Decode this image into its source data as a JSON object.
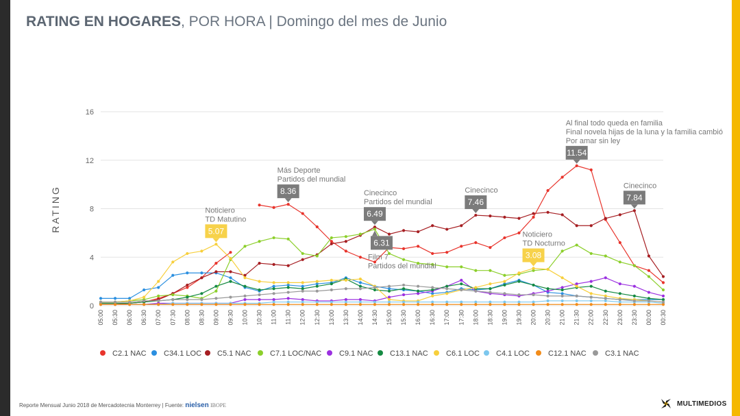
{
  "header": {
    "title_bold": "RATING EN HOGARES",
    "title_rest": ", POR HORA | Domingo del mes de Junio"
  },
  "footer": {
    "source_prefix": "Reporte Mensual Junio 2018 de Mercadotecnia Monterrey | Fuente:",
    "nielsen": "nielsen",
    "ibope": "IBOPE",
    "brand": "MULTIMEDIOS"
  },
  "chart_data": {
    "type": "line",
    "ylabel": "RATING",
    "ylim": [
      0,
      16
    ],
    "yticks": [
      0,
      4,
      8,
      12,
      16
    ],
    "grid": true,
    "legend_position": "bottom",
    "categories": [
      "05:00",
      "05:30",
      "06:00",
      "06:30",
      "07:00",
      "07:30",
      "08:00",
      "08:30",
      "09:00",
      "09:30",
      "10:00",
      "10:30",
      "11:00",
      "11:30",
      "12:00",
      "12:30",
      "13:00",
      "13:30",
      "14:00",
      "14:30",
      "15:00",
      "15:30",
      "16:00",
      "16:30",
      "17:00",
      "17:30",
      "18:00",
      "18:30",
      "19:00",
      "19:30",
      "20:00",
      "20:30",
      "21:00",
      "21:30",
      "22:00",
      "22:30",
      "23:00",
      "23:30",
      "00:00",
      "00:30"
    ],
    "series": [
      {
        "name": "C2.1 NAC",
        "color": "#e8342c",
        "values": [
          0.1,
          0.1,
          0.2,
          0.3,
          0.6,
          1.0,
          1.5,
          2.3,
          3.5,
          4.4,
          null,
          8.3,
          8.1,
          8.36,
          7.6,
          6.5,
          5.3,
          4.5,
          4.0,
          3.6,
          4.8,
          4.7,
          4.9,
          4.3,
          4.4,
          4.9,
          5.2,
          4.8,
          5.6,
          6.0,
          7.3,
          9.5,
          10.6,
          11.54,
          11.2,
          7.1,
          5.2,
          3.3,
          2.9,
          1.9
        ]
      },
      {
        "name": "C34.1 LOC",
        "color": "#2a8fe0",
        "values": [
          0.6,
          0.6,
          0.6,
          1.3,
          1.5,
          2.5,
          2.7,
          2.7,
          2.7,
          2.3,
          1.5,
          1.2,
          1.6,
          1.7,
          1.6,
          1.8,
          1.9,
          2.3,
          1.9,
          1.6,
          1.4,
          1.3,
          1.2,
          1.0,
          1.1,
          1.4,
          1.3,
          1.4,
          1.8,
          2.1,
          1.7,
          1.1,
          1.0,
          0.8,
          0.7,
          0.6,
          0.5,
          0.5,
          0.5,
          0.5
        ]
      },
      {
        "name": "C5.1 NAC",
        "color": "#a61e22",
        "values": [
          0.2,
          0.2,
          0.2,
          0.3,
          0.5,
          1.0,
          1.7,
          2.3,
          2.8,
          2.8,
          2.5,
          3.5,
          3.4,
          3.3,
          3.8,
          4.2,
          5.1,
          5.3,
          5.8,
          6.49,
          5.9,
          6.2,
          6.1,
          6.6,
          6.3,
          6.6,
          7.46,
          7.4,
          7.3,
          7.2,
          7.6,
          7.7,
          7.5,
          6.6,
          6.6,
          7.2,
          7.5,
          7.84,
          4.1,
          2.4
        ]
      },
      {
        "name": "C7.1 LOC/NAC",
        "color": "#8ccf2b",
        "values": [
          0.3,
          0.3,
          0.4,
          0.5,
          0.8,
          0.9,
          0.8,
          0.6,
          1.2,
          3.8,
          4.9,
          5.3,
          5.6,
          5.5,
          4.3,
          4.1,
          5.6,
          5.7,
          5.9,
          6.31,
          4.3,
          3.8,
          3.5,
          3.4,
          3.2,
          3.2,
          2.9,
          2.9,
          2.5,
          2.6,
          2.9,
          3.0,
          4.5,
          5.0,
          4.3,
          4.1,
          3.6,
          3.3,
          2.4,
          1.3
        ]
      },
      {
        "name": "C9.1 NAC",
        "color": "#9b30e0",
        "values": [
          0.1,
          0.1,
          0.1,
          0.1,
          0.2,
          0.2,
          0.2,
          0.2,
          0.2,
          0.2,
          0.5,
          0.5,
          0.5,
          0.6,
          0.5,
          0.4,
          0.4,
          0.5,
          0.5,
          0.4,
          0.7,
          0.9,
          1.0,
          1.2,
          1.6,
          2.1,
          1.2,
          1.0,
          0.9,
          0.8,
          1.0,
          1.2,
          1.5,
          1.8,
          2.0,
          2.3,
          1.8,
          1.6,
          1.1,
          0.8
        ]
      },
      {
        "name": "C13.1 NAC",
        "color": "#158a42",
        "values": [
          0.2,
          0.2,
          0.2,
          0.3,
          0.4,
          0.5,
          0.7,
          1.0,
          1.6,
          2.0,
          1.6,
          1.3,
          1.4,
          1.5,
          1.4,
          1.6,
          1.8,
          2.2,
          1.6,
          1.3,
          1.2,
          1.4,
          1.2,
          1.3,
          1.6,
          1.8,
          1.4,
          1.4,
          1.7,
          2.0,
          1.7,
          1.4,
          1.3,
          1.5,
          1.6,
          1.2,
          1.0,
          0.8,
          0.6,
          0.5
        ]
      },
      {
        "name": "C6.1 LOC",
        "color": "#f7cf3c",
        "values": [
          0.3,
          0.3,
          0.4,
          0.7,
          2.0,
          3.6,
          4.3,
          4.5,
          5.07,
          3.9,
          2.3,
          2.0,
          1.9,
          1.9,
          1.9,
          2.0,
          2.1,
          2.1,
          2.2,
          1.6,
          0.5,
          0.4,
          0.4,
          0.8,
          1.0,
          1.3,
          1.5,
          1.8,
          2.0,
          2.7,
          3.08,
          3.0,
          2.3,
          1.6,
          1.0,
          0.8,
          0.6,
          0.5,
          0.4,
          0.3
        ]
      },
      {
        "name": "C4.1 LOC",
        "color": "#7cc7ee",
        "values": [
          0.1,
          0.1,
          0.1,
          0.1,
          0.1,
          0.2,
          0.2,
          0.2,
          0.2,
          0.2,
          0.2,
          0.2,
          0.3,
          0.3,
          0.3,
          0.3,
          0.3,
          0.3,
          0.3,
          0.3,
          0.3,
          0.3,
          0.3,
          0.3,
          0.3,
          0.3,
          0.3,
          0.3,
          0.3,
          0.3,
          0.3,
          0.4,
          0.4,
          0.4,
          0.4,
          0.4,
          0.3,
          0.3,
          0.3,
          0.2
        ]
      },
      {
        "name": "C12.1 NAC",
        "color": "#f28c1a",
        "values": [
          0.1,
          0.1,
          0.1,
          0.1,
          0.1,
          0.1,
          0.1,
          0.1,
          0.1,
          0.1,
          0.1,
          0.1,
          0.1,
          0.1,
          0.1,
          0.1,
          0.1,
          0.1,
          0.1,
          0.1,
          0.1,
          0.1,
          0.1,
          0.1,
          0.1,
          0.1,
          0.1,
          0.1,
          0.1,
          0.1,
          0.1,
          0.1,
          0.1,
          0.1,
          0.1,
          0.1,
          0.1,
          0.1,
          0.1,
          0.1
        ]
      },
      {
        "name": "C3.1 NAC",
        "color": "#999999",
        "values": [
          0.3,
          0.3,
          0.3,
          0.4,
          0.4,
          0.5,
          0.5,
          0.5,
          0.6,
          0.7,
          0.8,
          0.9,
          1.0,
          1.1,
          1.2,
          1.2,
          1.3,
          1.4,
          1.4,
          1.5,
          1.6,
          1.7,
          1.6,
          1.5,
          1.4,
          1.3,
          1.2,
          1.1,
          1.0,
          0.9,
          0.9,
          0.8,
          0.8,
          0.8,
          0.7,
          0.6,
          0.5,
          0.4,
          0.4,
          0.3
        ]
      }
    ],
    "annotations": [
      {
        "series": "C6.1 LOC",
        "index": 8,
        "value": "5.07",
        "lines": [
          "Noticiero",
          "TD Matutino"
        ],
        "box_color": "#f7d24a",
        "text_color": "#ffffff"
      },
      {
        "series": "C2.1 NAC",
        "index": 13,
        "value": "8.36",
        "lines": [
          "Más Deporte",
          "Partidos del mundial"
        ],
        "box_color": "#7b7b7b",
        "text_color": "#ffffff"
      },
      {
        "series": "C5.1 NAC",
        "index": 19,
        "value": "6.49",
        "lines": [
          "Cinecinco",
          "Partidos del mundial"
        ],
        "box_color": "#7b7b7b",
        "text_color": "#ffffff"
      },
      {
        "series": "C7.1 LOC/NAC",
        "index": 19,
        "value": "6.31",
        "lines": [
          "Film 7",
          "Partidos del mundial"
        ],
        "box_color": "#7b7b7b",
        "text_color": "#ffffff"
      },
      {
        "series": "C5.1 NAC",
        "index": 26,
        "value": "7.46",
        "lines": [
          "Cinecinco"
        ],
        "box_color": "#7b7b7b",
        "text_color": "#ffffff"
      },
      {
        "series": "C6.1 LOC",
        "index": 30,
        "value": "3.08",
        "lines": [
          "Noticiero",
          "TD Nocturno"
        ],
        "box_color": "#f7d24a",
        "text_color": "#ffffff"
      },
      {
        "series": "C2.1 NAC",
        "index": 33,
        "value": "11.54",
        "lines": [
          "Al final todo queda en familia",
          "Final novela hijas de la luna y la familia cambió",
          "Por amar sin ley"
        ],
        "box_color": "#7b7b7b",
        "text_color": "#ffffff"
      },
      {
        "series": "C5.1 NAC",
        "index": 37,
        "value": "7.84",
        "lines": [
          "Cinecinco"
        ],
        "box_color": "#7b7b7b",
        "text_color": "#ffffff"
      }
    ]
  }
}
